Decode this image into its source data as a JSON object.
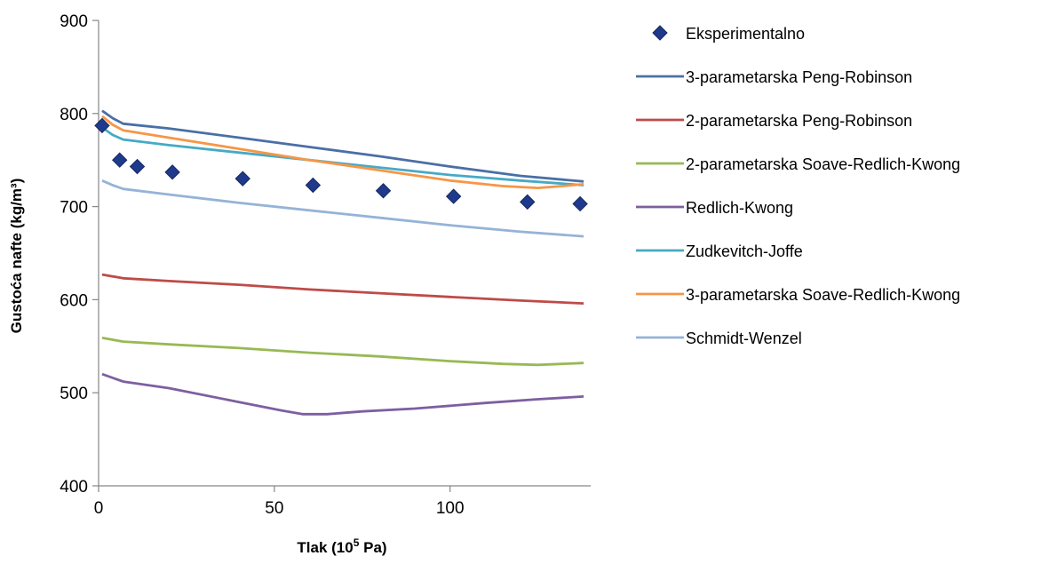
{
  "chart_data": {
    "type": "line",
    "xlabel": "Tlak (10",
    "xlabel_sup": "5",
    "xlabel_tail": " Pa)",
    "ylabel": "Gustoća nafte (kg/m³)",
    "xlim": [
      0,
      140
    ],
    "ylim": [
      400,
      900
    ],
    "xticks": [
      "0",
      "50",
      "100"
    ],
    "xtick_values": [
      0,
      50,
      100
    ],
    "yticks": [
      "400",
      "500",
      "600",
      "700",
      "800",
      "900"
    ],
    "ytick_values": [
      400,
      500,
      600,
      700,
      800,
      900
    ],
    "grid": false,
    "legend_position": "right",
    "markers": {
      "name": "Eksperimentalno",
      "color": "#1F3A8C",
      "points": [
        [
          1,
          787
        ],
        [
          6,
          750
        ],
        [
          11,
          743
        ],
        [
          21,
          737
        ],
        [
          41,
          730
        ],
        [
          61,
          723
        ],
        [
          81,
          717
        ],
        [
          101,
          711
        ],
        [
          122,
          705
        ],
        [
          137,
          703
        ]
      ]
    },
    "series": [
      {
        "name": "3-parametarska Peng-Robinson",
        "color": "#4A6FA5",
        "points": [
          [
            1,
            803
          ],
          [
            4,
            795
          ],
          [
            7,
            789
          ],
          [
            20,
            784
          ],
          [
            40,
            774
          ],
          [
            60,
            764
          ],
          [
            80,
            754
          ],
          [
            100,
            743
          ],
          [
            120,
            733
          ],
          [
            138,
            727
          ]
        ]
      },
      {
        "name": "2-parametarska Peng-Robinson",
        "color": "#BE4B48",
        "points": [
          [
            1,
            627
          ],
          [
            7,
            623
          ],
          [
            20,
            620
          ],
          [
            40,
            616
          ],
          [
            60,
            611
          ],
          [
            80,
            607
          ],
          [
            100,
            603
          ],
          [
            120,
            599
          ],
          [
            138,
            596
          ]
        ]
      },
      {
        "name": "2-parametarska Soave-Redlich-Kwong",
        "color": "#98B954",
        "points": [
          [
            1,
            559
          ],
          [
            7,
            555
          ],
          [
            20,
            552
          ],
          [
            40,
            548
          ],
          [
            60,
            543
          ],
          [
            80,
            539
          ],
          [
            100,
            534
          ],
          [
            115,
            531
          ],
          [
            125,
            530
          ],
          [
            138,
            532
          ]
        ]
      },
      {
        "name": "Redlich-Kwong",
        "color": "#7D5FA0",
        "points": [
          [
            1,
            520
          ],
          [
            7,
            512
          ],
          [
            20,
            505
          ],
          [
            40,
            490
          ],
          [
            52,
            481
          ],
          [
            58,
            477
          ],
          [
            65,
            477
          ],
          [
            75,
            480
          ],
          [
            90,
            483
          ],
          [
            110,
            489
          ],
          [
            125,
            493
          ],
          [
            138,
            496
          ]
        ]
      },
      {
        "name": "Zudkevitch-Joffe",
        "color": "#46AAC5",
        "points": [
          [
            1,
            785
          ],
          [
            4,
            777
          ],
          [
            7,
            772
          ],
          [
            20,
            766
          ],
          [
            40,
            758
          ],
          [
            60,
            750
          ],
          [
            80,
            742
          ],
          [
            100,
            734
          ],
          [
            120,
            728
          ],
          [
            138,
            723
          ]
        ]
      },
      {
        "name": "3-parametarska Soave-Redlich-Kwong",
        "color": "#F79646",
        "points": [
          [
            1,
            797
          ],
          [
            4,
            788
          ],
          [
            7,
            782
          ],
          [
            20,
            774
          ],
          [
            40,
            762
          ],
          [
            60,
            750
          ],
          [
            80,
            739
          ],
          [
            100,
            728
          ],
          [
            115,
            722
          ],
          [
            125,
            720
          ],
          [
            132,
            722
          ],
          [
            138,
            724
          ]
        ]
      },
      {
        "name": "Schmidt-Wenzel",
        "color": "#95B3D7",
        "points": [
          [
            1,
            728
          ],
          [
            4,
            723
          ],
          [
            7,
            719
          ],
          [
            20,
            713
          ],
          [
            40,
            704
          ],
          [
            60,
            696
          ],
          [
            80,
            688
          ],
          [
            100,
            680
          ],
          [
            120,
            673
          ],
          [
            138,
            668
          ]
        ]
      }
    ]
  }
}
